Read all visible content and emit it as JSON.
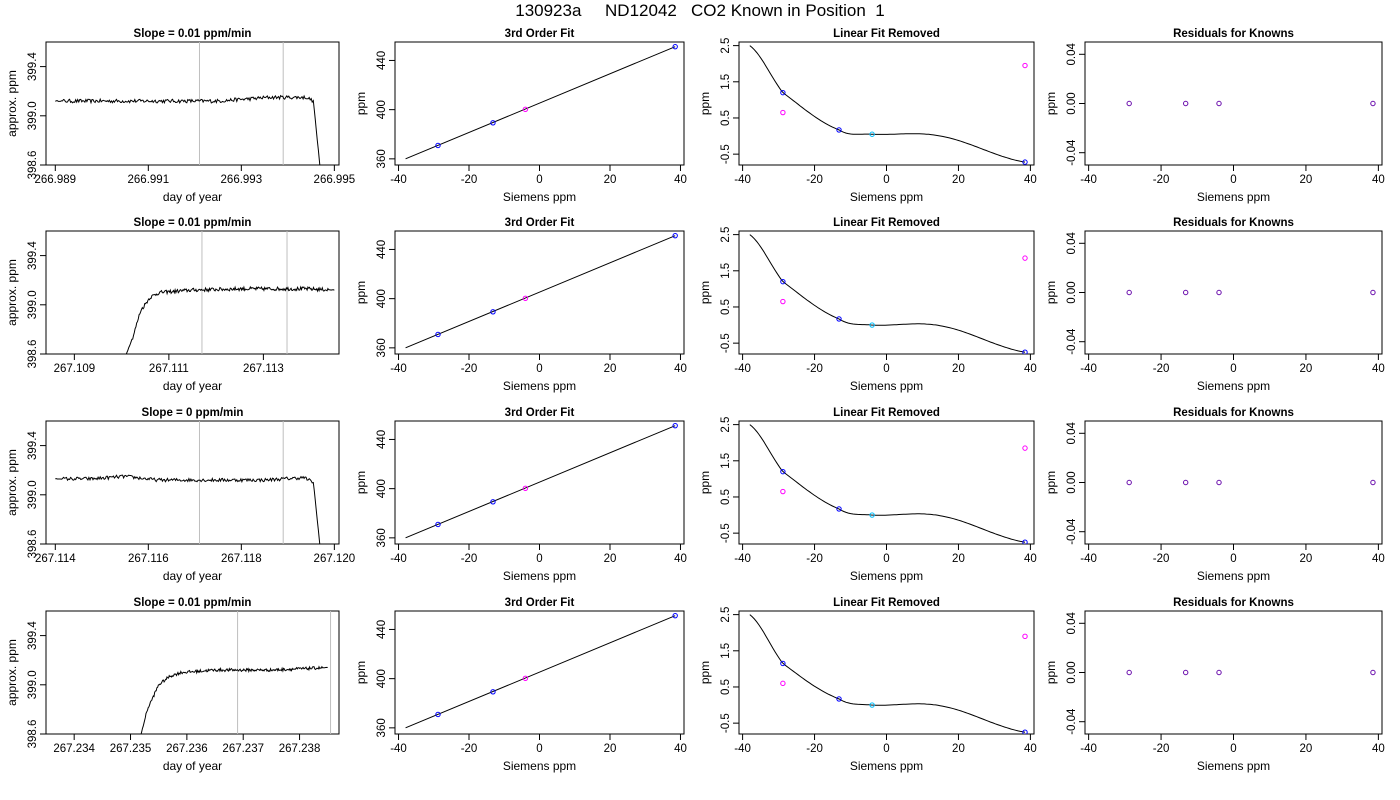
{
  "page": {
    "title": "130923a     ND12042   CO2 Known in Position  1"
  },
  "colors": {
    "line": "#000000",
    "vline": "#bebebe",
    "point_blue": "#0000ff",
    "point_cyan": "#00bfff",
    "point_magenta": "#ff00ff",
    "point_purple": "#6a0dad"
  },
  "chart_data": [
    {
      "type": "line",
      "title": "Slope =  0.01  ppm/min",
      "xlabel": "day of year",
      "ylabel": "approx. ppm",
      "xlim": [
        266.9888,
        266.9951
      ],
      "ylim": [
        398.6,
        399.6
      ],
      "xticks": [
        "266.989",
        "266.991",
        "266.993",
        "266.995"
      ],
      "xtick_values": [
        266.989,
        266.991,
        266.993,
        266.995
      ],
      "yticks": [
        "398.6",
        "399.0",
        "399.4"
      ],
      "ytick_values": [
        398.6,
        399.0,
        399.4
      ],
      "vlines": [
        266.9921,
        266.9939
      ],
      "series": [
        {
          "x": [
            266.989,
            266.9925,
            266.9936,
            266.99405,
            266.9944,
            266.99455,
            266.9947
          ],
          "y": [
            399.12,
            399.12,
            399.15,
            399.15,
            399.15,
            399.12,
            398.55
          ],
          "noise": 0.015
        }
      ]
    },
    {
      "type": "line",
      "title": "3rd Order Fit",
      "xlabel": "Siemens ppm",
      "ylabel": "ppm",
      "xlim": [
        -41,
        41
      ],
      "ylim": [
        355,
        455
      ],
      "xticks": [
        "-40",
        "-20",
        "0",
        "20",
        "40"
      ],
      "xtick_values": [
        -40,
        -20,
        0,
        20,
        40
      ],
      "yticks": [
        "360",
        "400",
        "440"
      ],
      "ytick_values": [
        360,
        400,
        440
      ],
      "fit_line": {
        "x": [
          -38,
          38.5
        ],
        "y": [
          360,
          451.2
        ]
      },
      "points": [
        {
          "x": -28.8,
          "y": 370.9,
          "color": "point_blue"
        },
        {
          "x": -13.2,
          "y": 389.3,
          "color": "point_blue"
        },
        {
          "x": -4.0,
          "y": 400.3,
          "color": "point_magenta"
        },
        {
          "x": 38.5,
          "y": 451.2,
          "color": "point_blue"
        }
      ]
    },
    {
      "type": "line",
      "title": "Linear Fit Removed",
      "xlabel": "Siemens ppm",
      "ylabel": "ppm",
      "xlim": [
        -41,
        41
      ],
      "ylim": [
        -0.8,
        2.6
      ],
      "xticks": [
        "-40",
        "-20",
        "0",
        "20",
        "40"
      ],
      "xtick_values": [
        -40,
        -20,
        0,
        20,
        40
      ],
      "yticks": [
        "-0.5",
        "0.5",
        "1.5",
        "2.5"
      ],
      "ytick_values": [
        -0.5,
        0.5,
        1.5,
        2.5
      ],
      "curve": {
        "x": [
          -38.0,
          -28.8,
          -13.2,
          -4.0,
          15.0,
          38.5
        ],
        "y": [
          2.5,
          1.2,
          0.17,
          0.05,
          0.0,
          -0.72
        ]
      },
      "points": [
        {
          "x": -28.8,
          "y": 1.2,
          "color": "point_blue"
        },
        {
          "x": -28.8,
          "y": 0.65,
          "color": "point_magenta"
        },
        {
          "x": -13.2,
          "y": 0.17,
          "color": "point_blue"
        },
        {
          "x": -4.0,
          "y": 0.05,
          "color": "point_cyan"
        },
        {
          "x": 38.5,
          "y": 1.95,
          "color": "point_magenta"
        },
        {
          "x": 38.5,
          "y": -0.72,
          "color": "point_blue"
        }
      ]
    },
    {
      "type": "scatter",
      "title": "Residuals for Knowns",
      "xlabel": "Siemens ppm",
      "ylabel": "ppm",
      "xlim": [
        -41,
        41
      ],
      "ylim": [
        -0.05,
        0.05
      ],
      "xticks": [
        "-40",
        "-20",
        "0",
        "20",
        "40"
      ],
      "xtick_values": [
        -40,
        -20,
        0,
        20,
        40
      ],
      "yticks": [
        "-0.04",
        "0.00",
        "0.04"
      ],
      "ytick_values": [
        -0.04,
        0.0,
        0.04
      ],
      "points": [
        {
          "x": -28.8,
          "y": 0.0,
          "color": "point_purple"
        },
        {
          "x": -13.2,
          "y": 0.0,
          "color": "point_purple"
        },
        {
          "x": -4.0,
          "y": 0.0,
          "color": "point_purple"
        },
        {
          "x": 38.5,
          "y": 0.0,
          "color": "point_purple"
        }
      ]
    },
    {
      "type": "line",
      "title": "Slope =  0.01  ppm/min",
      "xlabel": "day of year",
      "ylabel": "approx. ppm",
      "xlim": [
        267.1084,
        267.1146
      ],
      "ylim": [
        398.6,
        399.6
      ],
      "xticks": [
        "267.109",
        "267.111",
        "267.113"
      ],
      "xtick_values": [
        267.109,
        267.111,
        267.113
      ],
      "yticks": [
        "398.6",
        "399.0",
        "399.4"
      ],
      "ytick_values": [
        398.6,
        399.0,
        399.4
      ],
      "vlines": [
        267.1117,
        267.1135
      ],
      "series": [
        {
          "x": [
            267.1101,
            267.11025,
            267.1104,
            267.1106,
            267.1108,
            267.1115,
            267.1125,
            267.1139,
            267.1145
          ],
          "y": [
            398.6,
            398.75,
            398.95,
            399.06,
            399.1,
            399.12,
            399.13,
            399.13,
            399.12
          ],
          "noise": 0.015
        }
      ]
    },
    {
      "type": "line",
      "title": "3rd Order Fit",
      "xlabel": "Siemens ppm",
      "ylabel": "ppm",
      "xlim": [
        -41,
        41
      ],
      "ylim": [
        355,
        455
      ],
      "xticks": [
        "-40",
        "-20",
        "0",
        "20",
        "40"
      ],
      "xtick_values": [
        -40,
        -20,
        0,
        20,
        40
      ],
      "yticks": [
        "360",
        "400",
        "440"
      ],
      "ytick_values": [
        360,
        400,
        440
      ],
      "fit_line": {
        "x": [
          -38,
          38.5
        ],
        "y": [
          360,
          451.2
        ]
      },
      "points": [
        {
          "x": -28.8,
          "y": 370.9,
          "color": "point_blue"
        },
        {
          "x": -13.2,
          "y": 389.3,
          "color": "point_blue"
        },
        {
          "x": -4.0,
          "y": 400.3,
          "color": "point_magenta"
        },
        {
          "x": 38.5,
          "y": 451.2,
          "color": "point_blue"
        }
      ]
    },
    {
      "type": "line",
      "title": "Linear Fit Removed",
      "xlabel": "Siemens ppm",
      "ylabel": "ppm",
      "xlim": [
        -41,
        41
      ],
      "ylim": [
        -0.8,
        2.6
      ],
      "xticks": [
        "-40",
        "-20",
        "0",
        "20",
        "40"
      ],
      "xtick_values": [
        -40,
        -20,
        0,
        20,
        40
      ],
      "yticks": [
        "-0.5",
        "0.5",
        "1.5",
        "2.5"
      ],
      "ytick_values": [
        -0.5,
        0.5,
        1.5,
        2.5
      ],
      "curve": {
        "x": [
          -38.0,
          -28.8,
          -13.2,
          -4.0,
          15.0,
          38.5
        ],
        "y": [
          2.5,
          1.2,
          0.17,
          0.0,
          -0.02,
          -0.75
        ]
      },
      "points": [
        {
          "x": -28.8,
          "y": 1.2,
          "color": "point_blue"
        },
        {
          "x": -28.8,
          "y": 0.65,
          "color": "point_magenta"
        },
        {
          "x": -13.2,
          "y": 0.17,
          "color": "point_blue"
        },
        {
          "x": -4.0,
          "y": 0.0,
          "color": "point_cyan"
        },
        {
          "x": 38.5,
          "y": 1.85,
          "color": "point_magenta"
        },
        {
          "x": 38.5,
          "y": -0.75,
          "color": "point_blue"
        }
      ]
    },
    {
      "type": "scatter",
      "title": "Residuals for Knowns",
      "xlabel": "Siemens ppm",
      "ylabel": "ppm",
      "xlim": [
        -41,
        41
      ],
      "ylim": [
        -0.05,
        0.05
      ],
      "xticks": [
        "-40",
        "-20",
        "0",
        "20",
        "40"
      ],
      "xtick_values": [
        -40,
        -20,
        0,
        20,
        40
      ],
      "yticks": [
        "-0.04",
        "0.00",
        "0.04"
      ],
      "ytick_values": [
        -0.04,
        0.0,
        0.04
      ],
      "points": [
        {
          "x": -28.8,
          "y": 0.0,
          "color": "point_purple"
        },
        {
          "x": -13.2,
          "y": 0.0,
          "color": "point_purple"
        },
        {
          "x": -4.0,
          "y": 0.0,
          "color": "point_purple"
        },
        {
          "x": 38.5,
          "y": 0.0,
          "color": "point_purple"
        }
      ]
    },
    {
      "type": "line",
      "title": "Slope =  0  ppm/min",
      "xlabel": "day of year",
      "ylabel": "approx. ppm",
      "xlim": [
        267.1138,
        267.1201
      ],
      "ylim": [
        398.6,
        399.6
      ],
      "xticks": [
        "267.114",
        "267.116",
        "267.118",
        "267.120"
      ],
      "xtick_values": [
        267.114,
        267.116,
        267.118,
        267.12
      ],
      "yticks": [
        "398.6",
        "399.0",
        "399.4"
      ],
      "ytick_values": [
        398.6,
        399.0,
        399.4
      ],
      "vlines": [
        267.1171,
        267.1189
      ],
      "series": [
        {
          "x": [
            267.114,
            267.1148,
            267.1155,
            267.1162,
            267.1175,
            267.1185,
            267.11935,
            267.11955,
            267.1197
          ],
          "y": [
            399.13,
            399.13,
            399.15,
            399.12,
            399.12,
            399.12,
            399.14,
            399.1,
            398.55
          ],
          "noise": 0.014
        }
      ]
    },
    {
      "type": "line",
      "title": "3rd Order Fit",
      "xlabel": "Siemens ppm",
      "ylabel": "ppm",
      "xlim": [
        -41,
        41
      ],
      "ylim": [
        355,
        455
      ],
      "xticks": [
        "-40",
        "-20",
        "0",
        "20",
        "40"
      ],
      "xtick_values": [
        -40,
        -20,
        0,
        20,
        40
      ],
      "yticks": [
        "360",
        "400",
        "440"
      ],
      "ytick_values": [
        360,
        400,
        440
      ],
      "fit_line": {
        "x": [
          -38,
          38.5
        ],
        "y": [
          360,
          451.2
        ]
      },
      "points": [
        {
          "x": -28.8,
          "y": 370.9,
          "color": "point_blue"
        },
        {
          "x": -13.2,
          "y": 389.3,
          "color": "point_blue"
        },
        {
          "x": -4.0,
          "y": 400.3,
          "color": "point_magenta"
        },
        {
          "x": 38.5,
          "y": 451.2,
          "color": "point_blue"
        }
      ]
    },
    {
      "type": "line",
      "title": "Linear Fit Removed",
      "xlabel": "Siemens ppm",
      "ylabel": "ppm",
      "xlim": [
        -41,
        41
      ],
      "ylim": [
        -0.8,
        2.6
      ],
      "xticks": [
        "-40",
        "-20",
        "0",
        "20",
        "40"
      ],
      "xtick_values": [
        -40,
        -20,
        0,
        20,
        40
      ],
      "yticks": [
        "-0.5",
        "0.5",
        "1.5",
        "2.5"
      ],
      "ytick_values": [
        -0.5,
        0.5,
        1.5,
        2.5
      ],
      "curve": {
        "x": [
          -38.0,
          -28.8,
          -13.2,
          -4.0,
          15.0,
          38.5
        ],
        "y": [
          2.5,
          1.2,
          0.17,
          0.0,
          -0.02,
          -0.75
        ]
      },
      "points": [
        {
          "x": -28.8,
          "y": 1.2,
          "color": "point_blue"
        },
        {
          "x": -28.8,
          "y": 0.65,
          "color": "point_magenta"
        },
        {
          "x": -13.2,
          "y": 0.17,
          "color": "point_blue"
        },
        {
          "x": -4.0,
          "y": 0.0,
          "color": "point_cyan"
        },
        {
          "x": 38.5,
          "y": 1.85,
          "color": "point_magenta"
        },
        {
          "x": 38.5,
          "y": -0.75,
          "color": "point_blue"
        }
      ]
    },
    {
      "type": "scatter",
      "title": "Residuals for Knowns",
      "xlabel": "Siemens ppm",
      "ylabel": "ppm",
      "xlim": [
        -41,
        41
      ],
      "ylim": [
        -0.05,
        0.05
      ],
      "xticks": [
        "-40",
        "-20",
        "0",
        "20",
        "40"
      ],
      "xtick_values": [
        -40,
        -20,
        0,
        20,
        40
      ],
      "yticks": [
        "-0.04",
        "0.00",
        "0.04"
      ],
      "ytick_values": [
        -0.04,
        0.0,
        0.04
      ],
      "points": [
        {
          "x": -28.8,
          "y": 0.0,
          "color": "point_purple"
        },
        {
          "x": -13.2,
          "y": 0.0,
          "color": "point_purple"
        },
        {
          "x": -4.0,
          "y": 0.0,
          "color": "point_purple"
        },
        {
          "x": 38.5,
          "y": 0.0,
          "color": "point_purple"
        }
      ]
    },
    {
      "type": "line",
      "title": "Slope =  0.01  ppm/min",
      "xlabel": "day of year",
      "ylabel": "approx. ppm",
      "xlim": [
        267.2335,
        267.2387
      ],
      "ylim": [
        398.6,
        399.6
      ],
      "xticks": [
        "267.234",
        "267.235",
        "267.236",
        "267.237",
        "267.238"
      ],
      "xtick_values": [
        267.234,
        267.235,
        267.236,
        267.237,
        267.238
      ],
      "yticks": [
        "398.6",
        "399.0",
        "399.4"
      ],
      "ytick_values": [
        398.6,
        399.0,
        399.4
      ],
      "vlines": [
        267.2369,
        267.23855
      ],
      "series": [
        {
          "x": [
            267.23516,
            267.2353,
            267.2355,
            267.2357,
            267.2359,
            267.2365,
            267.2375,
            267.2385
          ],
          "y": [
            398.55,
            398.8,
            399.0,
            399.07,
            399.1,
            399.12,
            399.12,
            399.14
          ],
          "noise": 0.012
        }
      ]
    },
    {
      "type": "line",
      "title": "3rd Order Fit",
      "xlabel": "Siemens ppm",
      "ylabel": "ppm",
      "xlim": [
        -41,
        41
      ],
      "ylim": [
        355,
        455
      ],
      "xticks": [
        "-40",
        "-20",
        "0",
        "20",
        "40"
      ],
      "xtick_values": [
        -40,
        -20,
        0,
        20,
        40
      ],
      "yticks": [
        "360",
        "400",
        "440"
      ],
      "ytick_values": [
        360,
        400,
        440
      ],
      "fit_line": {
        "x": [
          -38,
          38.5
        ],
        "y": [
          360,
          451.2
        ]
      },
      "points": [
        {
          "x": -28.8,
          "y": 370.9,
          "color": "point_blue"
        },
        {
          "x": -13.2,
          "y": 389.3,
          "color": "point_blue"
        },
        {
          "x": -4.0,
          "y": 400.3,
          "color": "point_magenta"
        },
        {
          "x": 38.5,
          "y": 451.2,
          "color": "point_blue"
        }
      ]
    },
    {
      "type": "line",
      "title": "Linear Fit Removed",
      "xlabel": "Siemens ppm",
      "ylabel": "ppm",
      "xlim": [
        -41,
        41
      ],
      "ylim": [
        -0.8,
        2.6
      ],
      "xticks": [
        "-40",
        "-20",
        "0",
        "20",
        "40"
      ],
      "xtick_values": [
        -40,
        -20,
        0,
        20,
        40
      ],
      "yticks": [
        "-0.5",
        "0.5",
        "1.5",
        "2.5"
      ],
      "ytick_values": [
        -0.5,
        0.5,
        1.5,
        2.5
      ],
      "curve": {
        "x": [
          -38.0,
          -28.8,
          -13.2,
          -4.0,
          15.0,
          38.5
        ],
        "y": [
          2.5,
          1.15,
          0.17,
          0.0,
          -0.02,
          -0.75
        ]
      },
      "points": [
        {
          "x": -28.8,
          "y": 1.15,
          "color": "point_blue"
        },
        {
          "x": -28.8,
          "y": 0.6,
          "color": "point_magenta"
        },
        {
          "x": -13.2,
          "y": 0.17,
          "color": "point_blue"
        },
        {
          "x": -4.0,
          "y": 0.0,
          "color": "point_cyan"
        },
        {
          "x": 38.5,
          "y": 1.9,
          "color": "point_magenta"
        },
        {
          "x": 38.5,
          "y": -0.75,
          "color": "point_blue"
        }
      ]
    },
    {
      "type": "scatter",
      "title": "Residuals for Knowns",
      "xlabel": "Siemens ppm",
      "ylabel": "ppm",
      "xlim": [
        -41,
        41
      ],
      "ylim": [
        -0.05,
        0.05
      ],
      "xticks": [
        "-40",
        "-20",
        "0",
        "20",
        "40"
      ],
      "xtick_values": [
        -40,
        -20,
        0,
        20,
        40
      ],
      "yticks": [
        "-0.04",
        "0.00",
        "0.04"
      ],
      "ytick_values": [
        -0.04,
        0.0,
        0.04
      ],
      "points": [
        {
          "x": -28.8,
          "y": 0.0,
          "color": "point_purple"
        },
        {
          "x": -13.2,
          "y": 0.0,
          "color": "point_purple"
        },
        {
          "x": -4.0,
          "y": 0.0,
          "color": "point_purple"
        },
        {
          "x": 38.5,
          "y": 0.0,
          "color": "point_purple"
        }
      ]
    }
  ]
}
